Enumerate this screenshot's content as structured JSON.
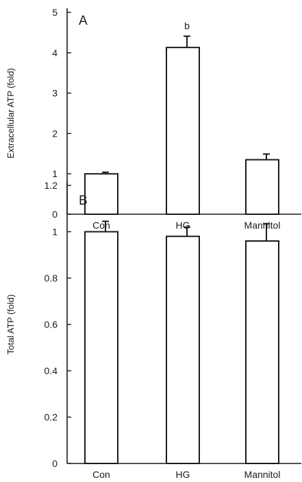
{
  "chart_data": [
    {
      "type": "bar",
      "panel_label": "A",
      "ylabel": "Extracellular ATP (fold)",
      "categories": [
        "Con",
        "HG",
        "Mannitol"
      ],
      "values": [
        1.0,
        4.13,
        1.35
      ],
      "errors": [
        0.04,
        0.28,
        0.14
      ],
      "bar_annotations": [
        "",
        "b",
        ""
      ],
      "ylim": [
        0,
        5
      ],
      "yticks": [
        0,
        1,
        2,
        3,
        4,
        5
      ],
      "ytick_labels": [
        "0",
        "1",
        "2",
        "3",
        "4",
        "5"
      ],
      "bar_fill": "#ffffff",
      "bar_stroke": "#1a1a1a",
      "grid": false
    },
    {
      "type": "bar",
      "panel_label": "B",
      "ylabel": "Total ATP (fold)",
      "categories": [
        "Con",
        "HG",
        "Mannitol"
      ],
      "values": [
        1.0,
        0.98,
        0.96
      ],
      "errors": [
        0.045,
        0.04,
        0.075
      ],
      "bar_annotations": [
        "",
        "",
        ""
      ],
      "ylim": [
        0,
        1.2
      ],
      "yticks": [
        0,
        0.2,
        0.4,
        0.6,
        0.8,
        1.0,
        1.2
      ],
      "ytick_labels": [
        "0",
        "0.2",
        "0.4",
        "0.6",
        "0.8",
        "1",
        "1.2"
      ],
      "bar_fill": "#ffffff",
      "bar_stroke": "#1a1a1a",
      "grid": false
    }
  ]
}
